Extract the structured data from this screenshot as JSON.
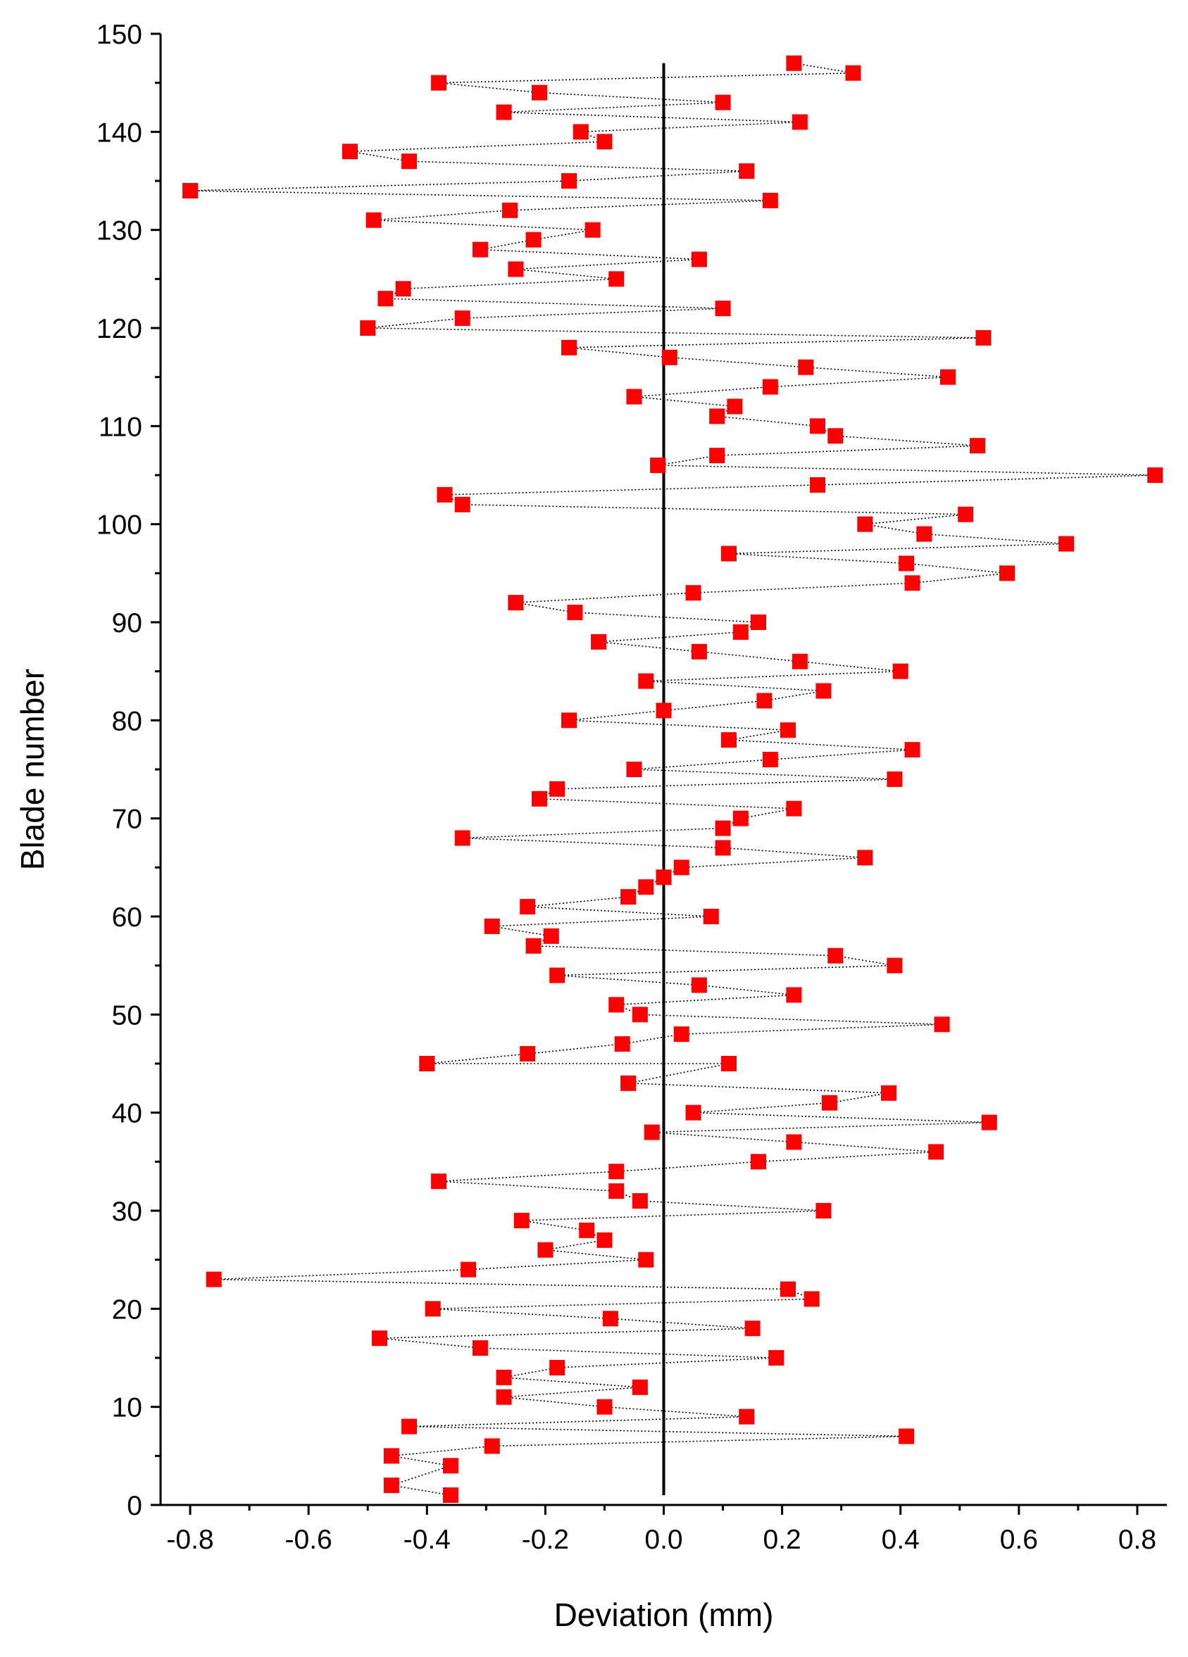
{
  "chart_data": {
    "type": "scatter",
    "title": "",
    "xlabel": "Deviation (mm)",
    "ylabel": "Blade number",
    "xlim": [
      -0.85,
      0.85
    ],
    "ylim": [
      0,
      150
    ],
    "x_ticks": [
      "-0.8",
      "-0.6",
      "-0.4",
      "-0.2",
      "0.0",
      "0.2",
      "0.4",
      "0.6",
      "0.8"
    ],
    "y_ticks": [
      "0",
      "10",
      "20",
      "30",
      "40",
      "50",
      "60",
      "70",
      "80",
      "90",
      "100",
      "110",
      "120",
      "130",
      "140",
      "150"
    ],
    "grid": false,
    "legend": "none",
    "marker": "square",
    "marker_color": "#ff0000",
    "connector": "dotted",
    "reference_line_x": 0,
    "series": [
      {
        "points": [
          [
            -0.36,
            1
          ],
          [
            -0.46,
            2
          ],
          [
            -0.36,
            4
          ],
          [
            -0.46,
            5
          ],
          [
            -0.29,
            6
          ],
          [
            0.41,
            7
          ],
          [
            -0.43,
            8
          ],
          [
            0.14,
            9
          ],
          [
            -0.1,
            10
          ],
          [
            -0.27,
            11
          ],
          [
            -0.04,
            12
          ],
          [
            -0.27,
            13
          ],
          [
            -0.18,
            14
          ],
          [
            0.19,
            15
          ],
          [
            -0.31,
            16
          ],
          [
            -0.48,
            17
          ],
          [
            0.15,
            18
          ],
          [
            -0.09,
            19
          ],
          [
            -0.39,
            20
          ],
          [
            0.25,
            21
          ],
          [
            0.21,
            22
          ],
          [
            -0.76,
            23
          ],
          [
            -0.33,
            24
          ],
          [
            -0.03,
            25
          ],
          [
            -0.2,
            26
          ],
          [
            -0.1,
            27
          ],
          [
            -0.13,
            28
          ],
          [
            -0.24,
            29
          ],
          [
            0.27,
            30
          ],
          [
            -0.04,
            31
          ],
          [
            -0.08,
            32
          ],
          [
            -0.38,
            33
          ],
          [
            -0.08,
            34
          ],
          [
            0.16,
            35
          ],
          [
            0.46,
            36
          ],
          [
            0.22,
            37
          ],
          [
            -0.02,
            38
          ],
          [
            0.55,
            39
          ],
          [
            0.05,
            40
          ],
          [
            0.28,
            41
          ],
          [
            0.38,
            42
          ],
          [
            -0.06,
            43
          ],
          [
            0.11,
            45
          ],
          [
            -0.4,
            45
          ],
          [
            -0.23,
            46
          ],
          [
            -0.07,
            47
          ],
          [
            0.03,
            48
          ],
          [
            0.47,
            49
          ],
          [
            -0.04,
            50
          ],
          [
            -0.08,
            51
          ],
          [
            0.22,
            52
          ],
          [
            0.06,
            53
          ],
          [
            -0.18,
            54
          ],
          [
            0.39,
            55
          ],
          [
            0.29,
            56
          ],
          [
            -0.22,
            57
          ],
          [
            -0.19,
            58
          ],
          [
            -0.29,
            59
          ],
          [
            0.08,
            60
          ],
          [
            -0.23,
            61
          ],
          [
            -0.06,
            62
          ],
          [
            -0.03,
            63
          ],
          [
            0.0,
            64
          ],
          [
            0.03,
            65
          ],
          [
            0.34,
            66
          ],
          [
            0.1,
            67
          ],
          [
            -0.34,
            68
          ],
          [
            0.1,
            69
          ],
          [
            0.13,
            70
          ],
          [
            0.22,
            71
          ],
          [
            -0.21,
            72
          ],
          [
            -0.18,
            73
          ],
          [
            0.39,
            74
          ],
          [
            -0.05,
            75
          ],
          [
            0.18,
            76
          ],
          [
            0.42,
            77
          ],
          [
            0.11,
            78
          ],
          [
            0.21,
            79
          ],
          [
            -0.16,
            80
          ],
          [
            0.0,
            81
          ],
          [
            0.17,
            82
          ],
          [
            0.27,
            83
          ],
          [
            -0.03,
            84
          ],
          [
            0.4,
            85
          ],
          [
            0.23,
            86
          ],
          [
            0.06,
            87
          ],
          [
            -0.11,
            88
          ],
          [
            0.13,
            89
          ],
          [
            0.16,
            90
          ],
          [
            -0.15,
            91
          ],
          [
            -0.25,
            92
          ],
          [
            0.05,
            93
          ],
          [
            0.42,
            94
          ],
          [
            0.58,
            95
          ],
          [
            0.41,
            96
          ],
          [
            0.11,
            97
          ],
          [
            0.68,
            98
          ],
          [
            0.44,
            99
          ],
          [
            0.34,
            100
          ],
          [
            0.51,
            101
          ],
          [
            -0.34,
            102
          ],
          [
            -0.37,
            103
          ],
          [
            0.26,
            104
          ],
          [
            0.83,
            105
          ],
          [
            -0.01,
            106
          ],
          [
            0.09,
            107
          ],
          [
            0.53,
            108
          ],
          [
            0.29,
            109
          ],
          [
            0.26,
            110
          ],
          [
            0.09,
            111
          ],
          [
            0.12,
            112
          ],
          [
            -0.05,
            113
          ],
          [
            0.18,
            114
          ],
          [
            0.48,
            115
          ],
          [
            0.24,
            116
          ],
          [
            0.01,
            117
          ],
          [
            -0.16,
            118
          ],
          [
            0.54,
            119
          ],
          [
            -0.5,
            120
          ],
          [
            -0.34,
            121
          ],
          [
            0.1,
            122
          ],
          [
            -0.47,
            123
          ],
          [
            -0.44,
            124
          ],
          [
            -0.08,
            125
          ],
          [
            -0.25,
            126
          ],
          [
            0.06,
            127
          ],
          [
            -0.31,
            128
          ],
          [
            -0.22,
            129
          ],
          [
            -0.12,
            130
          ],
          [
            -0.49,
            131
          ],
          [
            -0.26,
            132
          ],
          [
            0.18,
            133
          ],
          [
            -0.8,
            134
          ],
          [
            -0.16,
            135
          ],
          [
            0.14,
            136
          ],
          [
            -0.43,
            137
          ],
          [
            -0.53,
            138
          ],
          [
            -0.1,
            139
          ],
          [
            -0.14,
            140
          ],
          [
            0.23,
            141
          ],
          [
            -0.27,
            142
          ],
          [
            0.1,
            143
          ],
          [
            -0.21,
            144
          ],
          [
            -0.38,
            145
          ],
          [
            0.32,
            146
          ],
          [
            0.22,
            147
          ]
        ]
      }
    ]
  }
}
